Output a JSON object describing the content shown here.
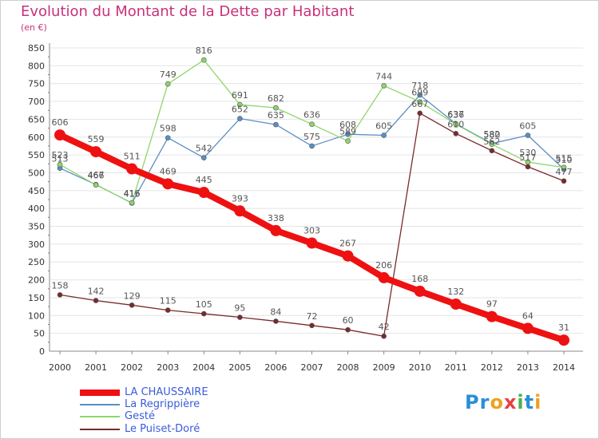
{
  "header": {
    "title": "Evolution du Montant de la Dette par Habitant",
    "subtitle": "(en €)"
  },
  "logo": {
    "text": "Proxiti",
    "letters": [
      "P",
      "r",
      "o",
      "x",
      "i",
      "t",
      "i"
    ],
    "colors": [
      "#2a8fd6",
      "#2a8fd6",
      "#f0a020",
      "#e84040",
      "#4caf50",
      "#2a8fd6",
      "#f0a020"
    ]
  },
  "chart_data": {
    "type": "line",
    "title": "Evolution du Montant de la Dette par Habitant",
    "subtitle": "(en €)",
    "xlabel": "",
    "ylabel": "",
    "x": [
      "2000",
      "2001",
      "2002",
      "2003",
      "2004",
      "2005",
      "2006",
      "2007",
      "2008",
      "2009",
      "2010",
      "2011",
      "2012",
      "2013",
      "2014"
    ],
    "ylim": [
      0,
      850
    ],
    "yticks": [
      "0",
      "50",
      "100",
      "150",
      "200",
      "250",
      "300",
      "350",
      "400",
      "450",
      "500",
      "550",
      "600",
      "650",
      "700",
      "750",
      "800",
      "850"
    ],
    "grid": "horizontal",
    "legend_position": "bottom-left",
    "series": [
      {
        "name": "LA CHAUSSAIRE",
        "color": "#ee1111",
        "values": [
          606,
          559,
          511,
          469,
          445,
          393,
          338,
          303,
          267,
          206,
          168,
          132,
          97,
          64,
          31
        ]
      },
      {
        "name": "La Regrippière",
        "color": "#5a8fc5",
        "values": [
          513,
          467,
          415,
          598,
          542,
          652,
          635,
          575,
          608,
          605,
          718,
          637,
          582,
          605,
          510
        ]
      },
      {
        "name": "Gesté",
        "color": "#8ed66a",
        "values": [
          523,
          466,
          416,
          749,
          816,
          691,
          682,
          636,
          589,
          744,
          699,
          636,
          580,
          530,
          515
        ]
      },
      {
        "name": "Le Puiset-Doré",
        "color": "#7a2a2a",
        "values": [
          158,
          142,
          129,
          115,
          105,
          95,
          84,
          72,
          60,
          42,
          667,
          610,
          562,
          517,
          477
        ]
      }
    ]
  }
}
